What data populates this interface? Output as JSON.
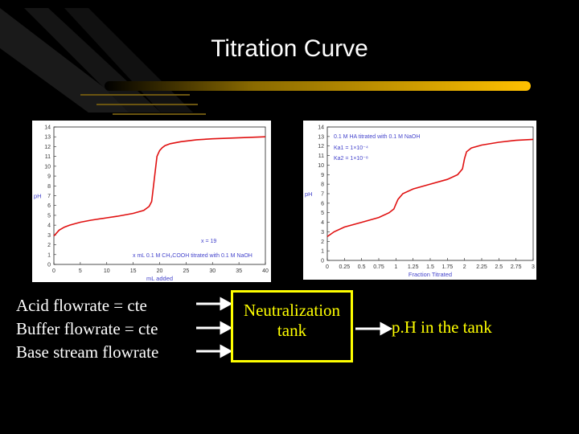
{
  "slide": {
    "title": "Titration Curve",
    "accent_color": "#ffcc00",
    "text_color": "#ffffff",
    "tank_color": "#ffff00"
  },
  "chart_data": [
    {
      "type": "line",
      "title": "",
      "xlabel": "mL added",
      "ylabel": "pH",
      "xlim": [
        0,
        40
      ],
      "ylim": [
        0,
        14
      ],
      "x_ticks": [
        0,
        5,
        10,
        15,
        20,
        25,
        30,
        35,
        40
      ],
      "y_ticks": [
        0,
        1,
        2,
        3,
        4,
        5,
        6,
        7,
        8,
        9,
        10,
        11,
        12,
        13,
        14
      ],
      "annotations": [
        "x = 19",
        "x mL 0.1 M CH₃COOH titrated with 0.1 M NaOH"
      ],
      "series": [
        {
          "color": "#e01010",
          "x": [
            0,
            1,
            2,
            3,
            5,
            7,
            10,
            12,
            15,
            17,
            18,
            18.5,
            19,
            19.5,
            20,
            20.5,
            21,
            22,
            24,
            27,
            30,
            35,
            40
          ],
          "y": [
            2.9,
            3.5,
            3.8,
            4.0,
            4.3,
            4.5,
            4.75,
            4.9,
            5.2,
            5.5,
            5.9,
            6.4,
            8.7,
            11.0,
            11.6,
            11.9,
            12.1,
            12.3,
            12.5,
            12.7,
            12.8,
            12.9,
            13.0
          ]
        }
      ]
    },
    {
      "type": "line",
      "title": "",
      "xlabel": "Fraction Titrated",
      "ylabel": "pH",
      "xlim": [
        0,
        3
      ],
      "ylim": [
        0,
        14
      ],
      "x_tick_labels": [
        "0",
        "0.25",
        "0.5",
        "0.75",
        "1",
        "1.25",
        "1.5",
        "1.75",
        "2",
        "2.25",
        "2.5",
        "2.75",
        "3"
      ],
      "y_ticks": [
        0,
        1,
        2,
        3,
        4,
        5,
        6,
        7,
        8,
        9,
        10,
        11,
        12,
        13,
        14
      ],
      "annotations": [
        "0.1 M HA titrated with 0.1 M NaOH",
        "Ka1 = 1×10⁻⁴",
        "Ka2 = 1×10⁻⁸"
      ],
      "series": [
        {
          "color": "#e01010",
          "x": [
            0,
            0.1,
            0.25,
            0.5,
            0.75,
            0.9,
            0.97,
            1.0,
            1.03,
            1.1,
            1.25,
            1.5,
            1.75,
            1.9,
            1.97,
            2.0,
            2.03,
            2.1,
            2.25,
            2.5,
            2.75,
            3.0
          ],
          "y": [
            2.5,
            3.0,
            3.5,
            4.0,
            4.5,
            5.0,
            5.4,
            5.9,
            6.4,
            7.0,
            7.5,
            8.0,
            8.5,
            9.0,
            9.6,
            10.7,
            11.4,
            11.8,
            12.1,
            12.4,
            12.6,
            12.7
          ]
        }
      ]
    }
  ],
  "process": {
    "inputs": [
      "Acid flowrate  =  cte",
      "Buffer flowrate = cte",
      "Base stream flowrate"
    ],
    "tank_label_line1": "Neutralization",
    "tank_label_line2": "tank",
    "output_label": "p.H in the tank"
  }
}
